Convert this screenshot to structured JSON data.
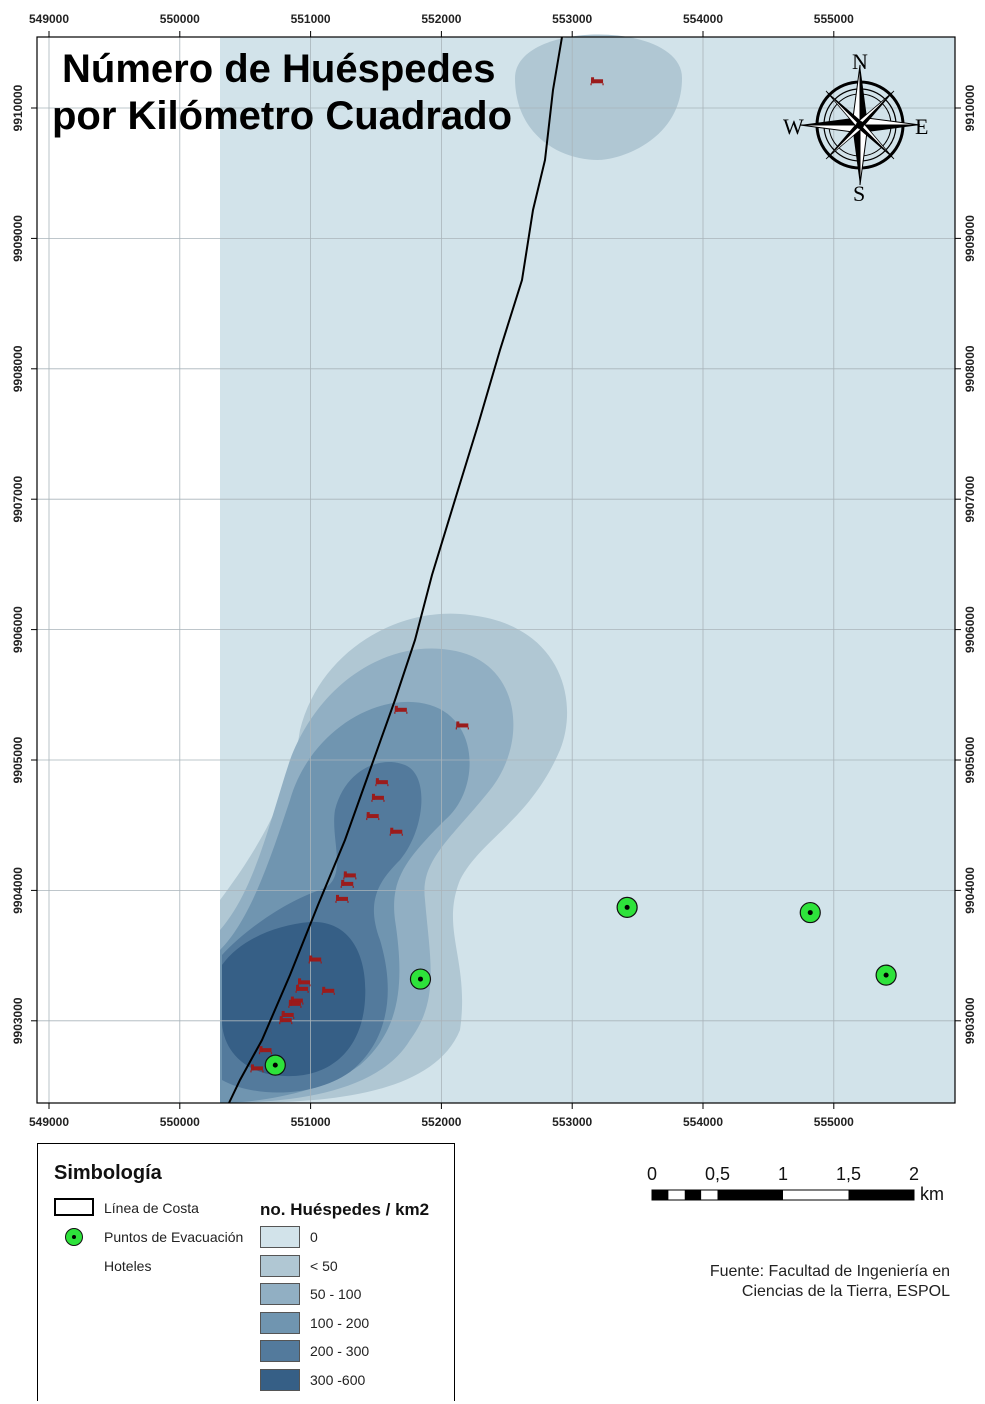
{
  "title": {
    "line1": "Número de Huéspedes",
    "line2": "por Kilómetro Cuadrado"
  },
  "axes": {
    "x_ticks": [
      "549000",
      "550000",
      "551000",
      "552000",
      "553000",
      "554000",
      "555000"
    ],
    "y_ticks": [
      "9910000",
      "9909000",
      "9908000",
      "9907000",
      "9906000",
      "9905000",
      "9904000",
      "9903000"
    ]
  },
  "compass": {
    "n": "N",
    "s": "S",
    "e": "E",
    "w": "W"
  },
  "density": {
    "class_field": "no. Huéspedes / km2",
    "classes": [
      {
        "label": "0",
        "color": "#d2e3ea"
      },
      {
        "label": "< 50",
        "color": "#b0c7d3"
      },
      {
        "label": "50 - 100",
        "color": "#91afc3"
      },
      {
        "label": "100 - 200",
        "color": "#7095b0"
      },
      {
        "label": "200 - 300",
        "color": "#537a9c"
      },
      {
        "label": "300 -600",
        "color": "#365f86"
      }
    ]
  },
  "coastline_color": "#000000",
  "hotel_color": "#9b1b1b",
  "hotels": [
    {
      "e": 553190,
      "n": 9910205
    },
    {
      "e": 551690,
      "n": 9905385
    },
    {
      "e": 552160,
      "n": 9905265
    },
    {
      "e": 551545,
      "n": 9904830
    },
    {
      "e": 551515,
      "n": 9904710
    },
    {
      "e": 551475,
      "n": 9904570
    },
    {
      "e": 551655,
      "n": 9904450
    },
    {
      "e": 551300,
      "n": 9904115
    },
    {
      "e": 551280,
      "n": 9904050
    },
    {
      "e": 551240,
      "n": 9903935
    },
    {
      "e": 551035,
      "n": 9903470
    },
    {
      "e": 550950,
      "n": 9903295
    },
    {
      "e": 550935,
      "n": 9903245
    },
    {
      "e": 551135,
      "n": 9903230
    },
    {
      "e": 550895,
      "n": 9903155
    },
    {
      "e": 550880,
      "n": 9903130
    },
    {
      "e": 550825,
      "n": 9903045
    },
    {
      "e": 550810,
      "n": 9903005
    },
    {
      "e": 550655,
      "n": 9902775
    },
    {
      "e": 550590,
      "n": 9902635
    }
  ],
  "evacuation_points": [
    {
      "e": 551840,
      "n": 9903320
    },
    {
      "e": 550730,
      "n": 9902660
    },
    {
      "e": 553420,
      "n": 9903870
    },
    {
      "e": 554820,
      "n": 9903830
    },
    {
      "e": 555400,
      "n": 9903350
    }
  ],
  "legend": {
    "title": "Simbología",
    "coastline": "Línea de Costa",
    "evacuation": "Puntos de Evacuación",
    "hotels": "Hoteles"
  },
  "scalebar": {
    "labels": [
      "0",
      "0,5",
      "1",
      "1,5",
      "2"
    ],
    "unit": "km"
  },
  "source": {
    "line1": "Fuente: Facultad de Ingeniería en",
    "line2": "Ciencias de la Tierra, ESPOL"
  }
}
